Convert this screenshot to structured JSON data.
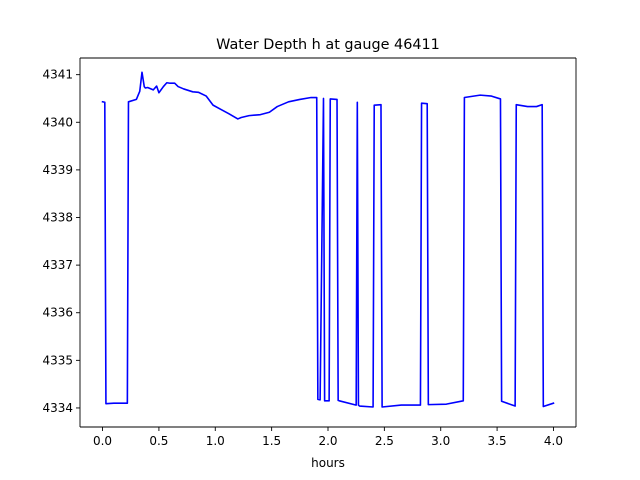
{
  "chart_data": {
    "type": "line",
    "title": "Water Depth h at gauge 46411",
    "xlabel": "hours",
    "ylabel": "",
    "xlim": [
      -0.2,
      4.2
    ],
    "ylim": [
      4333.6,
      4341.35
    ],
    "xticks": [
      0.0,
      0.5,
      1.0,
      1.5,
      2.0,
      2.5,
      3.0,
      3.5,
      4.0
    ],
    "xtick_labels": [
      "0.0",
      "0.5",
      "1.0",
      "1.5",
      "2.0",
      "2.5",
      "3.0",
      "3.5",
      "4.0"
    ],
    "yticks": [
      4334,
      4335,
      4336,
      4337,
      4338,
      4339,
      4340,
      4341
    ],
    "ytick_labels": [
      "4334",
      "4335",
      "4336",
      "4337",
      "4338",
      "4339",
      "4340",
      "4341"
    ],
    "grid": false,
    "series": [
      {
        "color": "#0000ff",
        "x": [
          0.0,
          0.02,
          0.03,
          0.1,
          0.22,
          0.23,
          0.3,
          0.33,
          0.35,
          0.37,
          0.38,
          0.4,
          0.45,
          0.48,
          0.5,
          0.54,
          0.57,
          0.6,
          0.64,
          0.67,
          0.72,
          0.8,
          0.85,
          0.92,
          0.98,
          1.05,
          1.12,
          1.2,
          1.23,
          1.3,
          1.4,
          1.48,
          1.55,
          1.65,
          1.75,
          1.85,
          1.9,
          1.91,
          1.93,
          1.96,
          1.97,
          1.98,
          2.01,
          2.02,
          2.08,
          2.09,
          2.1,
          2.25,
          2.26,
          2.27,
          2.28,
          2.4,
          2.41,
          2.47,
          2.48,
          2.65,
          2.82,
          2.83,
          2.88,
          2.89,
          3.05,
          3.2,
          3.21,
          3.35,
          3.45,
          3.53,
          3.54,
          3.66,
          3.67,
          3.77,
          3.85,
          3.9,
          3.91,
          4.0
        ],
        "y": [
          4340.43,
          4340.42,
          4334.09,
          4334.1,
          4334.1,
          4340.43,
          4340.48,
          4340.65,
          4341.05,
          4340.75,
          4340.72,
          4340.73,
          4340.68,
          4340.76,
          4340.62,
          4340.75,
          4340.83,
          4340.82,
          4340.82,
          4340.75,
          4340.7,
          4340.64,
          4340.63,
          4340.55,
          4340.36,
          4340.27,
          4340.18,
          4340.07,
          4340.1,
          4340.14,
          4340.16,
          4340.21,
          4340.33,
          4340.43,
          4340.48,
          4340.52,
          4340.52,
          4334.18,
          4334.17,
          4340.5,
          4334.15,
          4334.15,
          4334.15,
          4340.49,
          4340.48,
          4334.16,
          4334.15,
          4334.06,
          4340.42,
          4334.06,
          4334.04,
          4334.02,
          4340.36,
          4340.37,
          4334.02,
          4334.06,
          4334.06,
          4340.4,
          4340.39,
          4334.07,
          4334.08,
          4334.15,
          4340.52,
          4340.57,
          4340.55,
          4340.49,
          4334.14,
          4334.04,
          4340.37,
          4340.33,
          4340.33,
          4340.37,
          4334.03,
          4334.1
        ]
      }
    ]
  }
}
